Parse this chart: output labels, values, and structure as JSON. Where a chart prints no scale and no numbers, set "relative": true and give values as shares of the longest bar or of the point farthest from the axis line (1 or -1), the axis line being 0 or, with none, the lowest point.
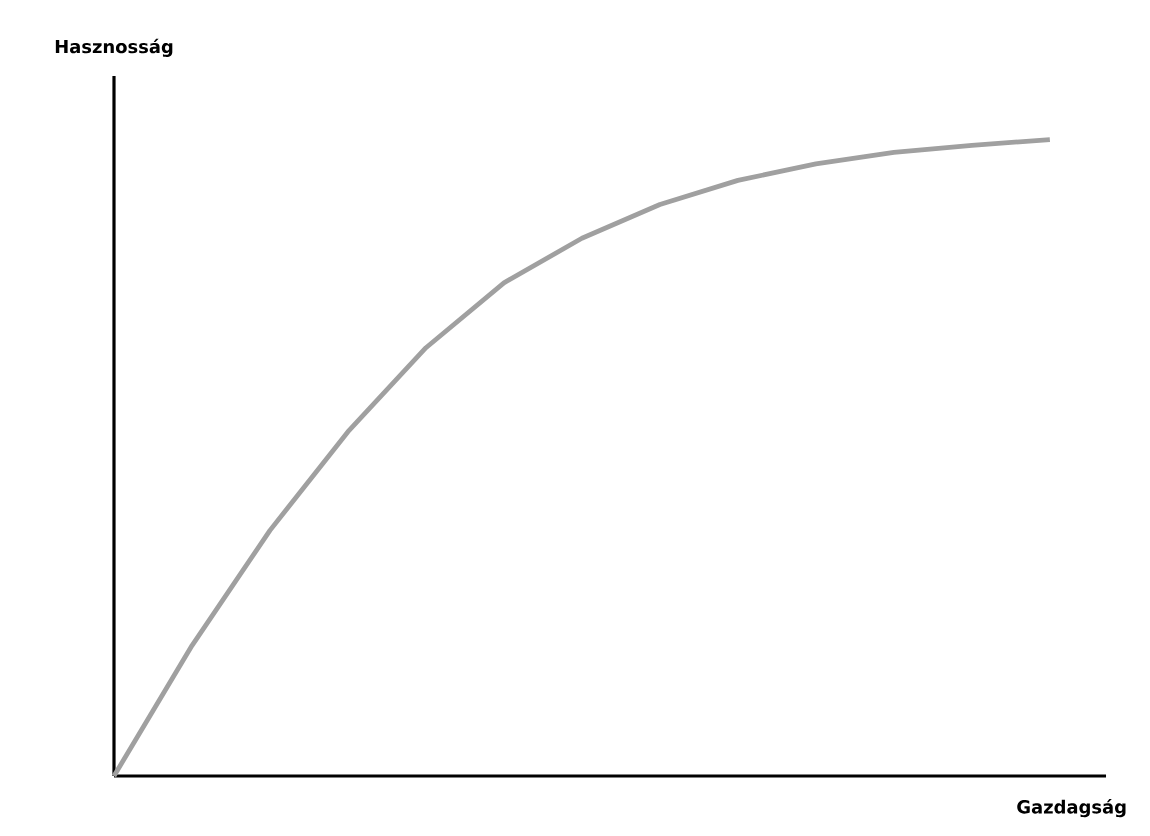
{
  "chart_data": {
    "type": "line",
    "relative": true,
    "xlabel": "Gazdagság",
    "ylabel": "Hasznosság",
    "categories": [
      null,
      null,
      null,
      null,
      null,
      null,
      null,
      null,
      null,
      null,
      null,
      null,
      null
    ],
    "series": [
      {
        "color": "#a0a0a0",
        "values": [
          0,
          0.205,
          0.386,
          0.541,
          0.673,
          0.775,
          0.845,
          0.898,
          0.936,
          0.962,
          0.98,
          0.991,
          1
        ]
      }
    ],
    "tick_labels": false,
    "marker": "none",
    "line_style": "solid"
  }
}
